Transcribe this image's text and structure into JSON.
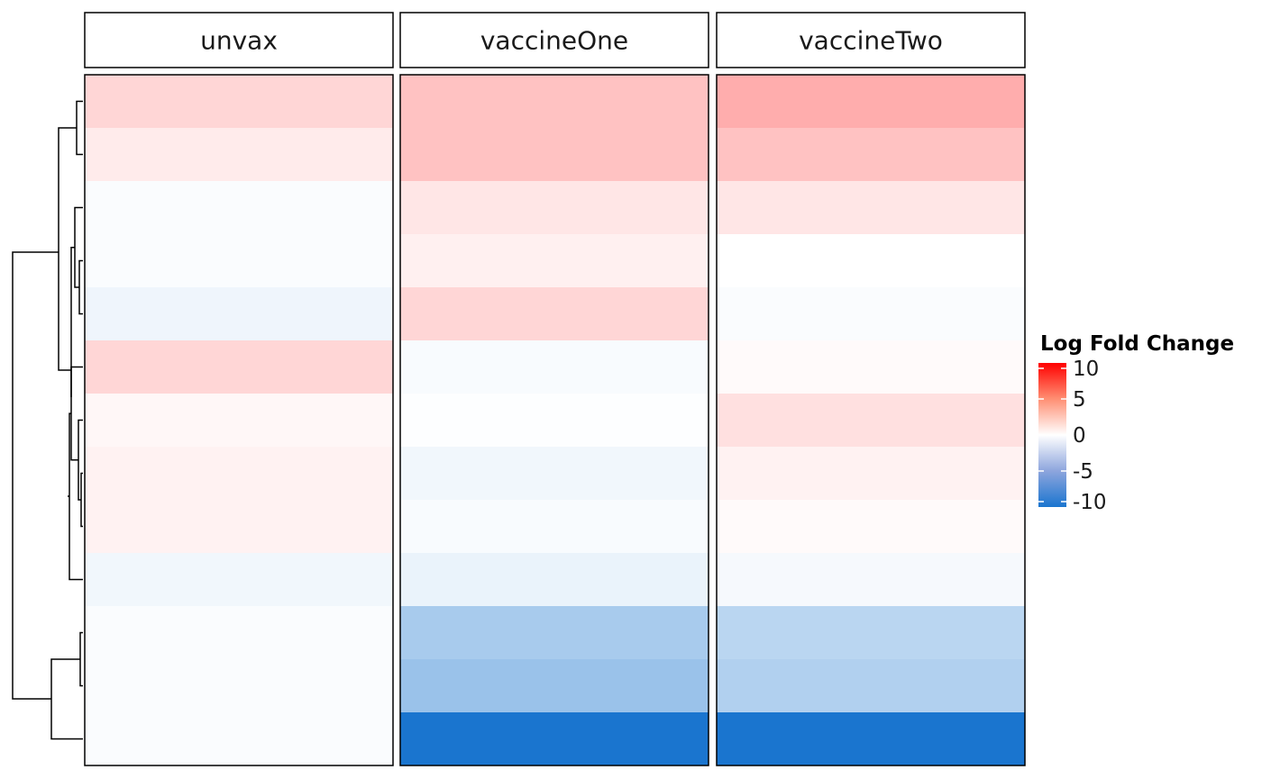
{
  "chart_data": {
    "type": "heatmap",
    "panels": [
      "unvax",
      "vaccineOne",
      "vaccineTwo"
    ],
    "rows": 13,
    "values": [
      [
        1.6,
        2.4,
        3.2
      ],
      [
        0.8,
        2.4,
        2.4
      ],
      [
        -0.2,
        1.0,
        1.0
      ],
      [
        -0.2,
        0.6,
        0.0
      ],
      [
        -0.7,
        1.6,
        -0.2
      ],
      [
        1.6,
        -0.3,
        0.2
      ],
      [
        0.3,
        -0.1,
        1.2
      ],
      [
        0.5,
        -0.6,
        0.5
      ],
      [
        0.5,
        -0.3,
        0.2
      ],
      [
        -0.6,
        -0.9,
        -0.4
      ],
      [
        -0.2,
        -3.8,
        -3.0
      ],
      [
        -0.2,
        -4.4,
        -3.4
      ],
      [
        -0.2,
        -10.0,
        -10.0
      ]
    ],
    "legend": {
      "title": "Log Fold Change",
      "ticks": [
        "10",
        "5",
        "0",
        "-5",
        "-10"
      ],
      "range": [
        -10,
        10
      ],
      "low_color": "#1a75cf",
      "mid_color": "#ffffff",
      "high_color": "#ff0000"
    },
    "dendrogram": "row clustering tree shown on the left"
  }
}
